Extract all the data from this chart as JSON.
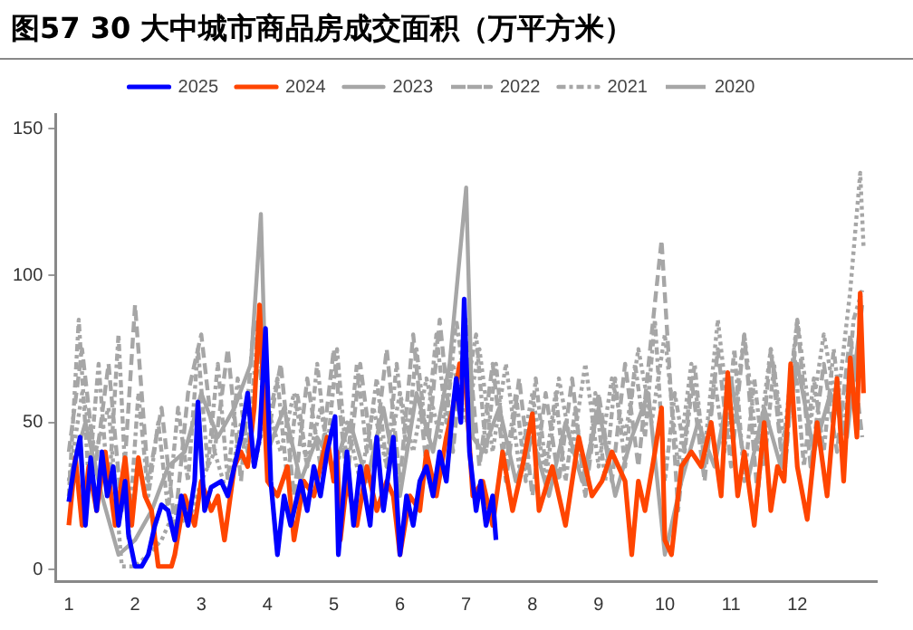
{
  "chart_data": {
    "type": "line",
    "title": "图57 30 大中城市商品房成交面积（万平方米）",
    "legend": "top",
    "grid": false,
    "marker": "none",
    "xlim": [
      0.8,
      13.2
    ],
    "xticks": [
      1,
      2,
      3,
      4,
      5,
      6,
      7,
      8,
      9,
      10,
      11,
      12
    ],
    "ylim": [
      -4,
      155
    ],
    "yticks": [
      0,
      50,
      100,
      150
    ],
    "series": [
      {
        "name": "2025",
        "color": "#0000ff",
        "line_style": "solid",
        "x": [
          1,
          1.08,
          1.17,
          1.25,
          1.33,
          1.42,
          1.5,
          1.58,
          1.67,
          1.75,
          1.85,
          1.9,
          2.0,
          2.1,
          2.2,
          2.3,
          2.4,
          2.5,
          2.6,
          2.7,
          2.8,
          2.9,
          2.95,
          3.05,
          3.15,
          3.3,
          3.4,
          3.5,
          3.6,
          3.7,
          3.8,
          3.88,
          3.97,
          4.05,
          4.15,
          4.25,
          4.35,
          4.5,
          4.6,
          4.7,
          4.8,
          4.9,
          5.02,
          5.07,
          5.2,
          5.3,
          5.4,
          5.55,
          5.65,
          5.75,
          5.9,
          6.0,
          6.1,
          6.2,
          6.3,
          6.4,
          6.5,
          6.6,
          6.7,
          6.8,
          6.85,
          6.92,
          6.97,
          7.05,
          7.15,
          7.22,
          7.3,
          7.4,
          7.45
        ],
        "values": [
          23,
          35,
          45,
          15,
          38,
          20,
          40,
          25,
          35,
          15,
          30,
          12,
          1,
          1,
          5,
          15,
          22,
          20,
          10,
          25,
          15,
          30,
          57,
          20,
          28,
          30,
          25,
          35,
          45,
          60,
          35,
          45,
          82,
          30,
          5,
          25,
          15,
          30,
          20,
          35,
          25,
          40,
          52,
          5,
          40,
          15,
          35,
          15,
          45,
          20,
          45,
          5,
          25,
          15,
          30,
          35,
          25,
          40,
          30,
          55,
          65,
          50,
          92,
          40,
          20,
          30,
          15,
          25,
          10
        ]
      },
      {
        "name": "2024",
        "color": "#ff4500",
        "line_style": "solid",
        "x": [
          1,
          1.1,
          1.2,
          1.3,
          1.42,
          1.55,
          1.7,
          1.85,
          1.95,
          2.05,
          2.15,
          2.25,
          2.35,
          2.45,
          2.55,
          2.6,
          2.75,
          2.9,
          3.0,
          3.15,
          3.25,
          3.35,
          3.5,
          3.6,
          3.7,
          3.8,
          3.88,
          4.0,
          4.15,
          4.3,
          4.4,
          4.55,
          4.7,
          4.9,
          5.0,
          5.05,
          5.1,
          5.2,
          5.35,
          5.5,
          5.65,
          5.8,
          5.9,
          6.0,
          6.15,
          6.3,
          6.4,
          6.55,
          6.7,
          6.8,
          6.9,
          7.0,
          7.1,
          7.25,
          7.4,
          7.55,
          7.7,
          7.85,
          8.0,
          8.1,
          8.3,
          8.5,
          8.7,
          8.9,
          9.05,
          9.2,
          9.4,
          9.5,
          9.6,
          9.7,
          9.85,
          9.95,
          10.0,
          10.1,
          10.25,
          10.4,
          10.55,
          10.7,
          10.85,
          10.95,
          11.1,
          11.2,
          11.35,
          11.5,
          11.6,
          11.7,
          11.8,
          11.9,
          12.0,
          12.15,
          12.3,
          12.45,
          12.6,
          12.7,
          12.8,
          12.9,
          12.95,
          13.0
        ],
        "values": [
          15,
          38,
          15,
          35,
          20,
          40,
          15,
          38,
          15,
          38,
          25,
          20,
          1,
          1,
          1,
          5,
          25,
          15,
          30,
          20,
          25,
          10,
          35,
          40,
          35,
          55,
          90,
          30,
          25,
          35,
          10,
          30,
          25,
          45,
          30,
          40,
          10,
          30,
          15,
          35,
          20,
          30,
          25,
          5,
          25,
          20,
          40,
          25,
          45,
          55,
          70,
          60,
          25,
          30,
          15,
          40,
          20,
          35,
          53,
          20,
          35,
          15,
          45,
          25,
          30,
          40,
          30,
          5,
          30,
          20,
          40,
          55,
          10,
          5,
          35,
          40,
          35,
          50,
          25,
          67,
          25,
          40,
          15,
          50,
          20,
          35,
          30,
          70,
          35,
          17,
          50,
          25,
          65,
          30,
          72,
          45,
          94,
          60
        ]
      },
      {
        "name": "2023",
        "color": "#a6a6a6",
        "line_style": "solid",
        "x": [
          1,
          1.25,
          1.5,
          1.75,
          2,
          2.25,
          2.5,
          2.75,
          3,
          3.25,
          3.5,
          3.75,
          3.9,
          4,
          4.25,
          4.5,
          4.75,
          5,
          5.25,
          5.5,
          5.75,
          6,
          6.25,
          6.5,
          6.75,
          7,
          7.1,
          7.25,
          7.5,
          7.75,
          8,
          8.25,
          8.5,
          8.75,
          9,
          9.25,
          9.5,
          9.75,
          10,
          10.25,
          10.5,
          10.75,
          11,
          11.25,
          11.5,
          11.75,
          12,
          12.25,
          12.5,
          12.75,
          12.98
        ],
        "values": [
          30,
          50,
          25,
          5,
          10,
          20,
          35,
          40,
          60,
          45,
          55,
          70,
          121,
          40,
          55,
          30,
          45,
          35,
          50,
          30,
          55,
          25,
          60,
          40,
          70,
          130,
          45,
          40,
          55,
          30,
          45,
          25,
          50,
          30,
          55,
          25,
          45,
          60,
          5,
          30,
          50,
          35,
          65,
          30,
          55,
          35,
          70,
          40,
          60,
          45,
          90
        ]
      },
      {
        "name": "2022",
        "color": "#a6a6a6",
        "line_style": "dashed",
        "x": [
          1,
          1.2,
          1.4,
          1.6,
          1.8,
          2,
          2.2,
          2.4,
          2.6,
          2.8,
          3,
          3.2,
          3.4,
          3.6,
          3.8,
          4,
          4.2,
          4.4,
          4.6,
          4.8,
          5,
          5.2,
          5.4,
          5.6,
          5.8,
          6,
          6.2,
          6.4,
          6.6,
          6.8,
          7,
          7.2,
          7.4,
          7.6,
          7.8,
          8,
          8.2,
          8.4,
          8.6,
          8.8,
          9,
          9.2,
          9.4,
          9.6,
          9.8,
          9.95,
          10.2,
          10.4,
          10.6,
          10.8,
          11,
          11.2,
          11.4,
          11.6,
          11.8,
          12,
          12.2,
          12.4,
          12.6,
          12.8,
          12.98
        ],
        "values": [
          40,
          75,
          35,
          70,
          20,
          90,
          30,
          55,
          15,
          60,
          80,
          40,
          75,
          30,
          85,
          45,
          70,
          25,
          65,
          35,
          75,
          30,
          70,
          35,
          75,
          30,
          80,
          35,
          85,
          40,
          85,
          35,
          70,
          30,
          65,
          25,
          60,
          30,
          65,
          25,
          60,
          30,
          70,
          35,
          80,
          112,
          20,
          65,
          30,
          75,
          35,
          80,
          25,
          75,
          30,
          85,
          35,
          70,
          40,
          80,
          45
        ]
      },
      {
        "name": "2021",
        "color": "#a6a6a6",
        "line_style": "dashdot",
        "x": [
          1,
          1.15,
          1.3,
          1.45,
          1.6,
          1.75,
          1.9,
          2.05,
          2.2,
          2.35,
          2.5,
          2.65,
          2.8,
          2.95,
          3.1,
          3.25,
          3.4,
          3.55,
          3.7,
          3.85,
          4,
          4.15,
          4.3,
          4.45,
          4.6,
          4.75,
          4.9,
          5.05,
          5.2,
          5.35,
          5.5,
          5.65,
          5.8,
          5.95,
          6.1,
          6.25,
          6.4,
          6.55,
          6.7,
          6.85,
          7,
          7.15,
          7.3,
          7.45,
          7.6,
          7.75,
          7.9,
          8.05,
          8.2,
          8.35,
          8.5,
          8.65,
          8.8,
          8.95,
          9.1,
          9.25,
          9.4,
          9.55,
          9.7,
          9.85,
          10,
          10.15,
          10.3,
          10.45,
          10.6,
          10.75,
          10.9,
          11.05,
          11.2,
          11.35,
          11.5,
          11.65,
          11.8,
          11.95,
          12.1,
          12.25,
          12.4,
          12.55,
          12.7,
          12.85,
          12.98
        ],
        "values": [
          25,
          85,
          30,
          70,
          25,
          80,
          10,
          60,
          25,
          50,
          20,
          55,
          30,
          75,
          35,
          70,
          30,
          65,
          40,
          80,
          50,
          65,
          30,
          60,
          35,
          70,
          40,
          75,
          35,
          70,
          40,
          65,
          35,
          70,
          40,
          75,
          45,
          80,
          50,
          85,
          60,
          80,
          40,
          70,
          35,
          60,
          30,
          65,
          35,
          60,
          30,
          55,
          25,
          60,
          30,
          65,
          35,
          70,
          45,
          85,
          30,
          60,
          40,
          70,
          35,
          65,
          40,
          75,
          30,
          65,
          35,
          70,
          30,
          75,
          35,
          65,
          40,
          75,
          45,
          85,
          95
        ]
      },
      {
        "name": "2020",
        "color": "#a6a6a6",
        "line_style": "dotted",
        "x": [
          1,
          1.2,
          1.4,
          1.6,
          1.8,
          2,
          2.2,
          2.4,
          2.6,
          2.8,
          3,
          3.2,
          3.4,
          3.6,
          3.8,
          4,
          4.2,
          4.4,
          4.6,
          4.8,
          5,
          5.2,
          5.4,
          5.6,
          5.8,
          6,
          6.2,
          6.4,
          6.6,
          6.8,
          7,
          7.2,
          7.4,
          7.6,
          7.8,
          8,
          8.2,
          8.4,
          8.6,
          8.8,
          9,
          9.2,
          9.4,
          9.6,
          9.8,
          10,
          10.2,
          10.4,
          10.6,
          10.8,
          11,
          11.2,
          11.4,
          11.6,
          11.8,
          12,
          12.2,
          12.4,
          12.6,
          12.8,
          12.95,
          13
        ],
        "values": [
          30,
          60,
          40,
          55,
          1,
          1,
          5,
          10,
          20,
          15,
          30,
          40,
          25,
          50,
          35,
          55,
          40,
          60,
          35,
          55,
          30,
          50,
          30,
          55,
          35,
          60,
          40,
          65,
          45,
          70,
          50,
          75,
          40,
          70,
          35,
          60,
          30,
          65,
          40,
          70,
          35,
          65,
          45,
          75,
          50,
          80,
          35,
          70,
          40,
          85,
          45,
          80,
          40,
          75,
          45,
          85,
          50,
          80,
          55,
          95,
          135,
          110
        ]
      }
    ]
  }
}
